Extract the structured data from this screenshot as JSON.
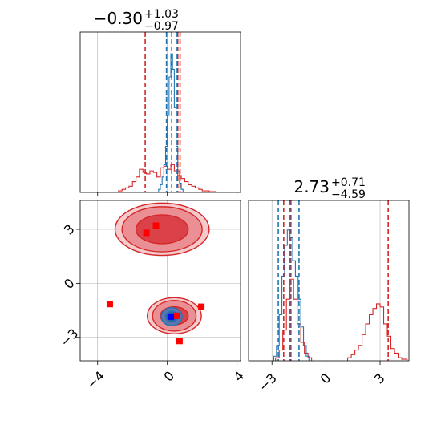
{
  "chart_data": {
    "type": "corner",
    "colors": {
      "red": "#d62728",
      "blue": "#1f77b4",
      "grid": "#b0b0b0",
      "fill_red": "#e8a0a3"
    },
    "panels": [
      {
        "id": "marginal-x",
        "type": "histogram",
        "title": {
          "value": "−0.30",
          "plus": "+1.03",
          "minus": "−0.97"
        },
        "xlim": [
          -5,
          4.2
        ],
        "x_ticks": [
          -4,
          0,
          4
        ],
        "tick_labels_shown": false,
        "series": [
          {
            "color": "red",
            "bins": [
              {
                "x0": -2.8,
                "x1": -2.6,
                "h": 0.01
              },
              {
                "x0": -2.6,
                "x1": -2.4,
                "h": 0.02
              },
              {
                "x0": -2.4,
                "x1": -2.2,
                "h": 0.03
              },
              {
                "x0": -2.2,
                "x1": -2.0,
                "h": 0.04
              },
              {
                "x0": -2.0,
                "x1": -1.8,
                "h": 0.07
              },
              {
                "x0": -1.8,
                "x1": -1.6,
                "h": 0.1
              },
              {
                "x0": -1.6,
                "x1": -1.4,
                "h": 0.15
              },
              {
                "x0": -1.4,
                "x1": -1.2,
                "h": 0.13
              },
              {
                "x0": -1.2,
                "x1": -1.0,
                "h": 0.12
              },
              {
                "x0": -1.0,
                "x1": -0.8,
                "h": 0.14
              },
              {
                "x0": -0.8,
                "x1": -0.6,
                "h": 0.13
              },
              {
                "x0": -0.6,
                "x1": -0.4,
                "h": 0.1
              },
              {
                "x0": -0.4,
                "x1": -0.2,
                "h": 0.16
              },
              {
                "x0": -0.2,
                "x1": 0.0,
                "h": 0.17
              },
              {
                "x0": 0.0,
                "x1": 0.2,
                "h": 0.15
              },
              {
                "x0": 0.2,
                "x1": 0.4,
                "h": 0.18
              },
              {
                "x0": 0.4,
                "x1": 0.6,
                "h": 0.14
              },
              {
                "x0": 0.6,
                "x1": 0.8,
                "h": 0.11
              },
              {
                "x0": 0.8,
                "x1": 1.0,
                "h": 0.09
              },
              {
                "x0": 1.0,
                "x1": 1.2,
                "h": 0.07
              },
              {
                "x0": 1.2,
                "x1": 1.4,
                "h": 0.05
              },
              {
                "x0": 1.4,
                "x1": 1.6,
                "h": 0.04
              },
              {
                "x0": 1.6,
                "x1": 1.8,
                "h": 0.03
              },
              {
                "x0": 1.8,
                "x1": 2.0,
                "h": 0.02
              },
              {
                "x0": 2.0,
                "x1": 2.4,
                "h": 0.01
              },
              {
                "x0": 2.4,
                "x1": 2.8,
                "h": 0.005
              }
            ]
          },
          {
            "color": "blue",
            "bins": [
              {
                "x0": -0.5,
                "x1": -0.4,
                "h": 0.02
              },
              {
                "x0": -0.4,
                "x1": -0.3,
                "h": 0.05
              },
              {
                "x0": -0.3,
                "x1": -0.2,
                "h": 0.1
              },
              {
                "x0": -0.2,
                "x1": -0.1,
                "h": 0.18
              },
              {
                "x0": -0.1,
                "x1": 0.0,
                "h": 0.3
              },
              {
                "x0": 0.0,
                "x1": 0.1,
                "h": 0.5
              },
              {
                "x0": 0.1,
                "x1": 0.2,
                "h": 0.75
              },
              {
                "x0": 0.2,
                "x1": 0.3,
                "h": 0.9
              },
              {
                "x0": 0.3,
                "x1": 0.4,
                "h": 0.8
              },
              {
                "x0": 0.4,
                "x1": 0.5,
                "h": 0.55
              },
              {
                "x0": 0.5,
                "x1": 0.6,
                "h": 0.3
              },
              {
                "x0": 0.6,
                "x1": 0.7,
                "h": 0.14
              },
              {
                "x0": 0.7,
                "x1": 0.8,
                "h": 0.06
              },
              {
                "x0": 0.8,
                "x1": 0.9,
                "h": 0.02
              }
            ]
          }
        ],
        "ylim": [
          0,
          1.0
        ],
        "vlines": [
          {
            "x": -1.27,
            "color": "red"
          },
          {
            "x": 0.6,
            "color": "red"
          },
          {
            "x": 0.73,
            "color": "red"
          },
          {
            "x": -0.05,
            "color": "blue"
          },
          {
            "x": 0.25,
            "color": "blue"
          },
          {
            "x": 0.52,
            "color": "blue"
          }
        ]
      },
      {
        "id": "joint",
        "type": "contour",
        "xlim": [
          -5,
          4.2
        ],
        "ylim": [
          -4.3,
          4.6
        ],
        "x_ticks": [
          -4,
          0,
          4
        ],
        "x_tick_labels": [
          "−4",
          "0",
          "4"
        ],
        "y_ticks": [
          -3,
          0,
          3
        ],
        "y_tick_labels": [
          "−3",
          "0",
          "3"
        ],
        "red_modes": [
          {
            "cx": -0.3,
            "cy": 3.0,
            "rx": [
              2.7,
              2.3,
              1.5
            ],
            "ry": [
              1.45,
              1.25,
              0.8
            ]
          },
          {
            "cx": 0.4,
            "cy": -1.8,
            "rx": [
              1.55,
              1.25,
              0.8
            ],
            "ry": [
              1.0,
              0.85,
              0.5
            ]
          }
        ],
        "blue_mode": {
          "cx": 0.25,
          "cy": -1.85,
          "rx": [
            0.6,
            0.35
          ],
          "ry": [
            0.5,
            0.3
          ]
        },
        "red_points": [
          {
            "x": -1.2,
            "y": 2.8
          },
          {
            "x": -0.65,
            "y": 3.2
          },
          {
            "x": -3.3,
            "y": -1.15
          },
          {
            "x": 1.95,
            "y": -1.3
          },
          {
            "x": 0.7,
            "y": -3.2
          },
          {
            "x": 0.55,
            "y": -1.8
          }
        ],
        "blue_points": [
          {
            "x": 0.2,
            "y": -1.85
          }
        ]
      },
      {
        "id": "marginal-y",
        "type": "histogram",
        "title": {
          "value": "2.73",
          "plus": "+0.71",
          "minus": "−4.59"
        },
        "xlim": [
          -4.3,
          4.6
        ],
        "x_ticks": [
          -3,
          0,
          3
        ],
        "x_tick_labels": [
          "−3",
          "0",
          "3"
        ],
        "series": [
          {
            "color": "red",
            "bins": [
              {
                "x0": -2.8,
                "x1": -2.6,
                "h": 0.02
              },
              {
                "x0": -2.6,
                "x1": -2.4,
                "h": 0.07
              },
              {
                "x0": -2.4,
                "x1": -2.2,
                "h": 0.2
              },
              {
                "x0": -2.2,
                "x1": -2.0,
                "h": 0.4
              },
              {
                "x0": -2.0,
                "x1": -1.8,
                "h": 0.53
              },
              {
                "x0": -1.8,
                "x1": -1.6,
                "h": 0.4
              },
              {
                "x0": -1.6,
                "x1": -1.4,
                "h": 0.24
              },
              {
                "x0": -1.4,
                "x1": -1.2,
                "h": 0.12
              },
              {
                "x0": -1.2,
                "x1": -1.0,
                "h": 0.05
              },
              {
                "x0": -1.0,
                "x1": -0.8,
                "h": 0.02
              },
              {
                "x0": 1.2,
                "x1": 1.4,
                "h": 0.02
              },
              {
                "x0": 1.4,
                "x1": 1.6,
                "h": 0.04
              },
              {
                "x0": 1.6,
                "x1": 1.8,
                "h": 0.07
              },
              {
                "x0": 1.8,
                "x1": 2.0,
                "h": 0.1
              },
              {
                "x0": 2.0,
                "x1": 2.2,
                "h": 0.17
              },
              {
                "x0": 2.2,
                "x1": 2.4,
                "h": 0.24
              },
              {
                "x0": 2.4,
                "x1": 2.6,
                "h": 0.3
              },
              {
                "x0": 2.6,
                "x1": 2.8,
                "h": 0.34
              },
              {
                "x0": 2.8,
                "x1": 3.0,
                "h": 0.37
              },
              {
                "x0": 3.0,
                "x1": 3.2,
                "h": 0.35
              },
              {
                "x0": 3.2,
                "x1": 3.4,
                "h": 0.24
              },
              {
                "x0": 3.4,
                "x1": 3.6,
                "h": 0.16
              },
              {
                "x0": 3.6,
                "x1": 3.8,
                "h": 0.08
              },
              {
                "x0": 3.8,
                "x1": 4.0,
                "h": 0.05
              },
              {
                "x0": 4.0,
                "x1": 4.2,
                "h": 0.02
              },
              {
                "x0": 4.2,
                "x1": 4.5,
                "h": 0.01
              }
            ]
          },
          {
            "color": "blue",
            "bins": [
              {
                "x0": -2.9,
                "x1": -2.75,
                "h": 0.03
              },
              {
                "x0": -2.75,
                "x1": -2.6,
                "h": 0.1
              },
              {
                "x0": -2.6,
                "x1": -2.45,
                "h": 0.3
              },
              {
                "x0": -2.45,
                "x1": -2.3,
                "h": 0.55
              },
              {
                "x0": -2.3,
                "x1": -2.15,
                "h": 0.75
              },
              {
                "x0": -2.15,
                "x1": -2.0,
                "h": 0.85
              },
              {
                "x0": -2.0,
                "x1": -1.85,
                "h": 0.8
              },
              {
                "x0": -1.85,
                "x1": -1.7,
                "h": 0.65
              },
              {
                "x0": -1.7,
                "x1": -1.55,
                "h": 0.55
              },
              {
                "x0": -1.55,
                "x1": -1.4,
                "h": 0.4
              },
              {
                "x0": -1.4,
                "x1": -1.25,
                "h": 0.22
              },
              {
                "x0": -1.25,
                "x1": -1.1,
                "h": 0.1
              },
              {
                "x0": -1.1,
                "x1": -0.95,
                "h": 0.03
              }
            ]
          }
        ],
        "ylim": [
          0,
          1.0
        ],
        "vlines": [
          {
            "x": -2.35,
            "color": "red"
          },
          {
            "x": -1.95,
            "color": "red"
          },
          {
            "x": 3.45,
            "color": "red"
          },
          {
            "x": -2.65,
            "color": "blue"
          },
          {
            "x": -2.0,
            "color": "blue"
          },
          {
            "x": -1.5,
            "color": "blue"
          }
        ]
      }
    ]
  }
}
